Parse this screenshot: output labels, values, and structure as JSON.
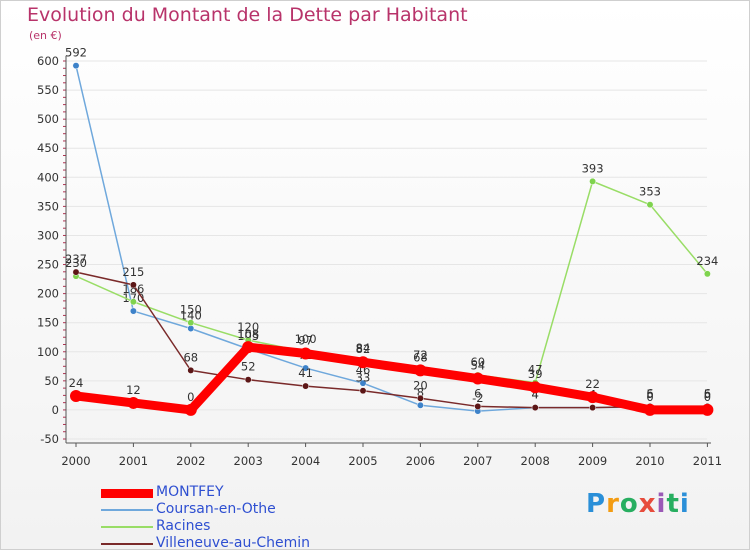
{
  "title": "Evolution du Montant de la Dette par Habitant",
  "unit_label": "(en €)",
  "logo_text": "Proxiti",
  "colors": {
    "title": "#b8336a",
    "legend_text": "#2e4fd1",
    "axis": "#333333",
    "grid": "#e6e6e6"
  },
  "chart_data": {
    "type": "line",
    "title": "Evolution du Montant de la Dette par Habitant",
    "ylabel": "(en €)",
    "xlabel": "",
    "ylim": [
      -50,
      600
    ],
    "yticks": [
      -50,
      0,
      50,
      100,
      150,
      200,
      250,
      300,
      350,
      400,
      450,
      500,
      550,
      600
    ],
    "grid": true,
    "legend_position": "bottom-left",
    "categories": [
      "2000",
      "2001",
      "2002",
      "2003",
      "2004",
      "2005",
      "2006",
      "2007",
      "2008",
      "2009",
      "2010",
      "2011"
    ],
    "series": [
      {
        "name": "Coursan-en-Othe",
        "color": "#6fa8dc",
        "marker": "#3d82c9",
        "values": [
          592,
          170,
          140,
          105,
          72,
          46,
          8,
          -2,
          4,
          4,
          5,
          5
        ],
        "labels": [
          "592",
          "170",
          "140",
          "105",
          "72",
          "46",
          "8",
          "-2",
          "4",
          "4",
          "5",
          "5"
        ]
      },
      {
        "name": "Racines",
        "color": "#99dd66",
        "marker": "#7fd34e",
        "values": [
          230,
          186,
          150,
          120,
          100,
          84,
          72,
          60,
          47,
          393,
          353,
          234
        ],
        "labels": [
          "230",
          "186",
          "150",
          "120",
          "100",
          "84",
          "72",
          "60",
          "47",
          "393",
          "353",
          "234"
        ]
      },
      {
        "name": "Villeneuve-au-Chemin",
        "color": "#7a2a2a",
        "marker": "#5c1616",
        "values": [
          237,
          215,
          68,
          52,
          41,
          33,
          20,
          6,
          4,
          4,
          6,
          6
        ],
        "labels": [
          "237",
          "215",
          "68",
          "52",
          "41",
          "33",
          "20",
          "6",
          "4",
          "4",
          "6",
          "6"
        ]
      },
      {
        "name": "MONTFEY",
        "color": "#ff0000",
        "marker": "#ff0000",
        "values": [
          24,
          12,
          0,
          108,
          97,
          82,
          68,
          54,
          39,
          22,
          0,
          0
        ],
        "labels": [
          "24",
          "12",
          "0",
          "108",
          "97",
          "82",
          "68",
          "54",
          "39",
          "22",
          "0",
          "0"
        ]
      }
    ]
  },
  "legend": [
    {
      "label": "MONTFEY",
      "color": "#ff0000",
      "style": "thick"
    },
    {
      "label": "Coursan-en-Othe",
      "color": "#6fa8dc",
      "style": "thin"
    },
    {
      "label": "Racines",
      "color": "#99dd66",
      "style": "thin"
    },
    {
      "label": "Villeneuve-au-Chemin",
      "color": "#7a2a2a",
      "style": "thin"
    }
  ]
}
